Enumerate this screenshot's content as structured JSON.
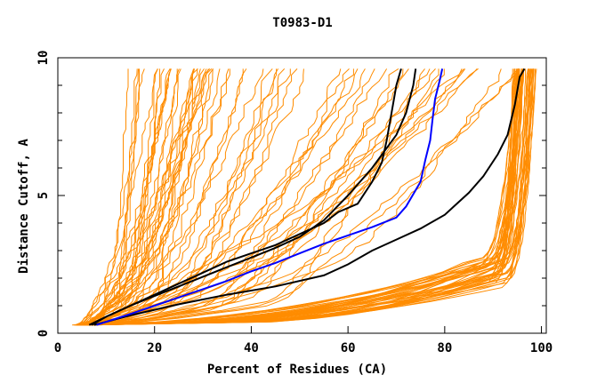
{
  "chart_data": {
    "type": "line",
    "title": "T0983-D1",
    "xlabel": "Percent of Residues (CA)",
    "ylabel": "Distance Cutoff, A",
    "xlim": [
      0,
      101
    ],
    "ylim": [
      0,
      10
    ],
    "x_ticks": [
      0,
      20,
      40,
      60,
      80,
      100
    ],
    "y_ticks_labeled": [
      0,
      5,
      10
    ],
    "y_minor_step": 1,
    "grid": false,
    "colors": {
      "others": "#ff8c00",
      "highlight_black": "#000000",
      "highlight_blue": "#0000ff"
    },
    "highlight_series": [
      {
        "color": "#000000",
        "points": [
          [
            6.5,
            0.3
          ],
          [
            10,
            0.6
          ],
          [
            15,
            1.0
          ],
          [
            20,
            1.4
          ],
          [
            25,
            1.8
          ],
          [
            30,
            2.2
          ],
          [
            35,
            2.6
          ],
          [
            40,
            2.9
          ],
          [
            45,
            3.2
          ],
          [
            50,
            3.6
          ],
          [
            55,
            4.0
          ],
          [
            58,
            4.4
          ],
          [
            62,
            4.7
          ],
          [
            65,
            5.5
          ],
          [
            67,
            6.2
          ],
          [
            68,
            7.0
          ],
          [
            69,
            8.0
          ],
          [
            70,
            9.0
          ],
          [
            71,
            9.6
          ]
        ]
      },
      {
        "color": "#000000",
        "points": [
          [
            7,
            0.3
          ],
          [
            10,
            0.6
          ],
          [
            15,
            1.0
          ],
          [
            20,
            1.35
          ],
          [
            25,
            1.7
          ],
          [
            30,
            2.05
          ],
          [
            35,
            2.4
          ],
          [
            40,
            2.75
          ],
          [
            45,
            3.1
          ],
          [
            50,
            3.5
          ],
          [
            55,
            4.1
          ],
          [
            60,
            5.0
          ],
          [
            65,
            6.0
          ],
          [
            70,
            7.2
          ],
          [
            72,
            8.0
          ],
          [
            73.5,
            9.0
          ],
          [
            74,
            9.6
          ]
        ]
      },
      {
        "color": "#000000",
        "points": [
          [
            7.5,
            0.3
          ],
          [
            15,
            0.65
          ],
          [
            25,
            1.05
          ],
          [
            35,
            1.4
          ],
          [
            45,
            1.7
          ],
          [
            55,
            2.1
          ],
          [
            60,
            2.5
          ],
          [
            65,
            3.0
          ],
          [
            70,
            3.4
          ],
          [
            75,
            3.8
          ],
          [
            80,
            4.3
          ],
          [
            85,
            5.1
          ],
          [
            88,
            5.7
          ],
          [
            91,
            6.5
          ],
          [
            93,
            7.2
          ],
          [
            94.5,
            8.3
          ],
          [
            95.5,
            9.3
          ],
          [
            96.5,
            9.6
          ]
        ]
      },
      {
        "color": "#0000ff",
        "points": [
          [
            8,
            0.3
          ],
          [
            15,
            0.7
          ],
          [
            20,
            1.0
          ],
          [
            25,
            1.3
          ],
          [
            30,
            1.6
          ],
          [
            35,
            1.9
          ],
          [
            40,
            2.25
          ],
          [
            45,
            2.55
          ],
          [
            50,
            2.9
          ],
          [
            55,
            3.25
          ],
          [
            60,
            3.55
          ],
          [
            65,
            3.85
          ],
          [
            70,
            4.2
          ],
          [
            72,
            4.6
          ],
          [
            75,
            5.5
          ],
          [
            76,
            6.3
          ],
          [
            77,
            7.0
          ],
          [
            77.5,
            7.8
          ],
          [
            78,
            8.5
          ],
          [
            79,
            9.2
          ],
          [
            79.5,
            9.6
          ]
        ]
      }
    ]
  }
}
